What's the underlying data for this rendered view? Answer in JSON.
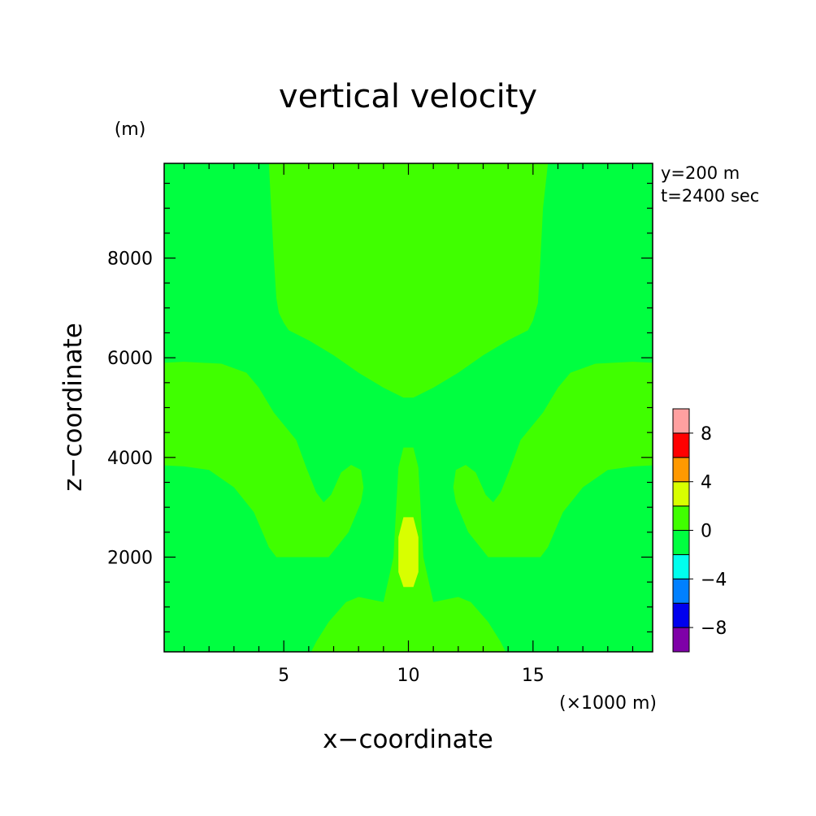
{
  "chart_data": {
    "type": "heatmap",
    "title": "vertical velocity",
    "xlabel": "x−coordinate",
    "ylabel": "z−coordinate",
    "x_unit": "(×1000 m)",
    "y_unit": "(m)",
    "annotations": [
      "y=200 m",
      "t=2400 sec"
    ],
    "xlim": [
      0.2,
      19.8
    ],
    "ylim": [
      100,
      9900
    ],
    "x_ticks": [
      5,
      10,
      15
    ],
    "y_ticks": [
      2000,
      4000,
      6000,
      8000
    ],
    "x_tick_labels": [
      "5",
      "10",
      "15"
    ],
    "y_tick_labels": [
      "2000",
      "4000",
      "6000",
      "8000"
    ],
    "grid": false,
    "colorbar": {
      "placement": "right",
      "levels": [
        -10,
        -8,
        -6,
        -4,
        -2,
        0,
        2,
        4,
        6,
        8,
        10
      ],
      "tick_values": [
        -8,
        -4,
        0,
        4,
        8
      ],
      "tick_labels": [
        "−8",
        "−4",
        "0",
        "4",
        "8"
      ],
      "colors": [
        "#7f00a8",
        "#0000ee",
        "#0080ff",
        "#00ffee",
        "#00ff40",
        "#40ff00",
        "#d8ff00",
        "#ff9900",
        "#ff0000",
        "#ffa0a0"
      ]
    },
    "background_level": {
      "range": [
        -2,
        0
      ],
      "color": "#00ff40"
    },
    "regions": [
      {
        "name": "upper",
        "range": [
          0,
          2
        ],
        "color": "#40ff00",
        "x": [
          4.4,
          4.6,
          4.7,
          4.8,
          5.0,
          5.2,
          6.0,
          7.0,
          8.0,
          9.0,
          9.8,
          10.2,
          11.0,
          12.0,
          13.0,
          14.0,
          14.8,
          15.0,
          15.2,
          15.3,
          15.4,
          15.6
        ],
        "z": [
          9900,
          8000,
          7200,
          6900,
          6700,
          6550,
          6350,
          6050,
          5700,
          5400,
          5200,
          5200,
          5400,
          5700,
          6050,
          6350,
          6550,
          6750,
          7100,
          8000,
          9000,
          9900
        ]
      },
      {
        "name": "left",
        "range": [
          0,
          2
        ],
        "color": "#40ff00",
        "x": [
          0.2,
          1.0,
          2.5,
          3.5,
          4.0,
          4.6,
          5.5,
          5.9,
          6.3,
          6.6,
          6.9,
          7.3,
          7.7,
          8.1,
          8.2,
          8.1,
          7.6,
          6.8,
          6.0,
          4.7,
          4.4,
          3.8,
          3.0,
          2.0,
          1.0,
          0.2
        ],
        "z": [
          5900,
          5920,
          5880,
          5700,
          5400,
          4900,
          4350,
          3800,
          3300,
          3100,
          3250,
          3700,
          3850,
          3750,
          3400,
          3100,
          2500,
          2000,
          2000,
          2000,
          2200,
          2900,
          3400,
          3750,
          3820,
          3840
        ]
      },
      {
        "name": "right",
        "range": [
          0,
          2
        ],
        "color": "#40ff00",
        "x": [
          19.8,
          19.0,
          17.5,
          16.5,
          16.0,
          15.4,
          14.5,
          14.1,
          13.7,
          13.4,
          13.1,
          12.7,
          12.3,
          11.9,
          11.8,
          11.9,
          12.4,
          13.2,
          14.0,
          15.3,
          15.6,
          16.2,
          17.0,
          18.0,
          19.0,
          19.8
        ],
        "z": [
          5900,
          5920,
          5880,
          5700,
          5400,
          4900,
          4350,
          3800,
          3300,
          3100,
          3250,
          3700,
          3850,
          3750,
          3400,
          3100,
          2500,
          2000,
          2000,
          2000,
          2200,
          2900,
          3400,
          3750,
          3820,
          3840
        ]
      },
      {
        "name": "bottom",
        "range": [
          0,
          2
        ],
        "color": "#40ff00",
        "x": [
          6.1,
          6.3,
          6.8,
          7.5,
          8.0,
          8.5,
          9.0,
          9.4,
          9.6,
          9.8,
          10.2,
          10.4,
          10.6,
          11.0,
          11.5,
          12.0,
          12.5,
          13.2,
          13.7,
          13.9
        ],
        "z": [
          100,
          300,
          700,
          1100,
          1200,
          1150,
          1100,
          2000,
          3800,
          4200,
          4200,
          3800,
          2000,
          1100,
          1150,
          1200,
          1100,
          700,
          300,
          100
        ]
      },
      {
        "name": "core",
        "range": [
          2,
          4
        ],
        "color": "#d8ff00",
        "x": [
          9.8,
          10.2,
          10.4,
          10.4,
          10.2,
          9.8,
          9.6,
          9.6
        ],
        "z": [
          2800,
          2800,
          2400,
          1700,
          1400,
          1400,
          1700,
          2400
        ]
      }
    ]
  }
}
